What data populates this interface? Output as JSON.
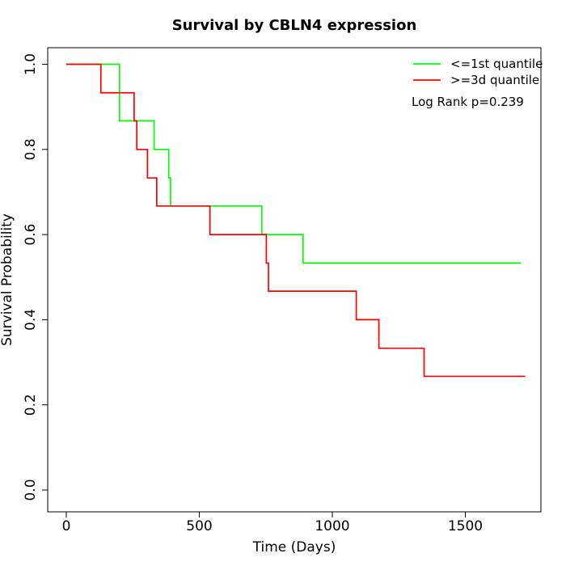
{
  "chart_data": {
    "type": "line",
    "title": "Survival by CBLN4 expression",
    "xlabel": "Time (Days)",
    "ylabel": "Survival Probability",
    "xlim": [
      0,
      1730
    ],
    "ylim": [
      0,
      1
    ],
    "x_ticks": [
      0,
      500,
      1000,
      1500
    ],
    "x_tick_labels": [
      "0",
      "500",
      "1000",
      "1500"
    ],
    "y_ticks": [
      0,
      0.2,
      0.4,
      0.6,
      0.8,
      1.0
    ],
    "y_tick_labels": [
      "0.0",
      "0.2",
      "0.4",
      "0.6",
      "0.8",
      "1.0"
    ],
    "grid": false,
    "legend_position": "top-right",
    "annotation": "Log Rank p=0.239",
    "series": [
      {
        "name": "<=1st quantile",
        "color": "#00ff00",
        "step": true,
        "x": [
          0,
          170,
          200,
          330,
          385,
          392,
          735,
          890,
          1710
        ],
        "y": [
          1.0,
          1.0,
          0.867,
          0.8,
          0.733,
          0.667,
          0.6,
          0.533,
          0.533
        ]
      },
      {
        "name": ">=3d quantile",
        "color": "#ff0000",
        "step": true,
        "x": [
          0,
          130,
          255,
          265,
          305,
          340,
          540,
          752,
          760,
          1090,
          1175,
          1345,
          1725
        ],
        "y": [
          1.0,
          0.933,
          0.867,
          0.8,
          0.733,
          0.667,
          0.6,
          0.533,
          0.467,
          0.4,
          0.333,
          0.267,
          0.267
        ]
      }
    ]
  }
}
